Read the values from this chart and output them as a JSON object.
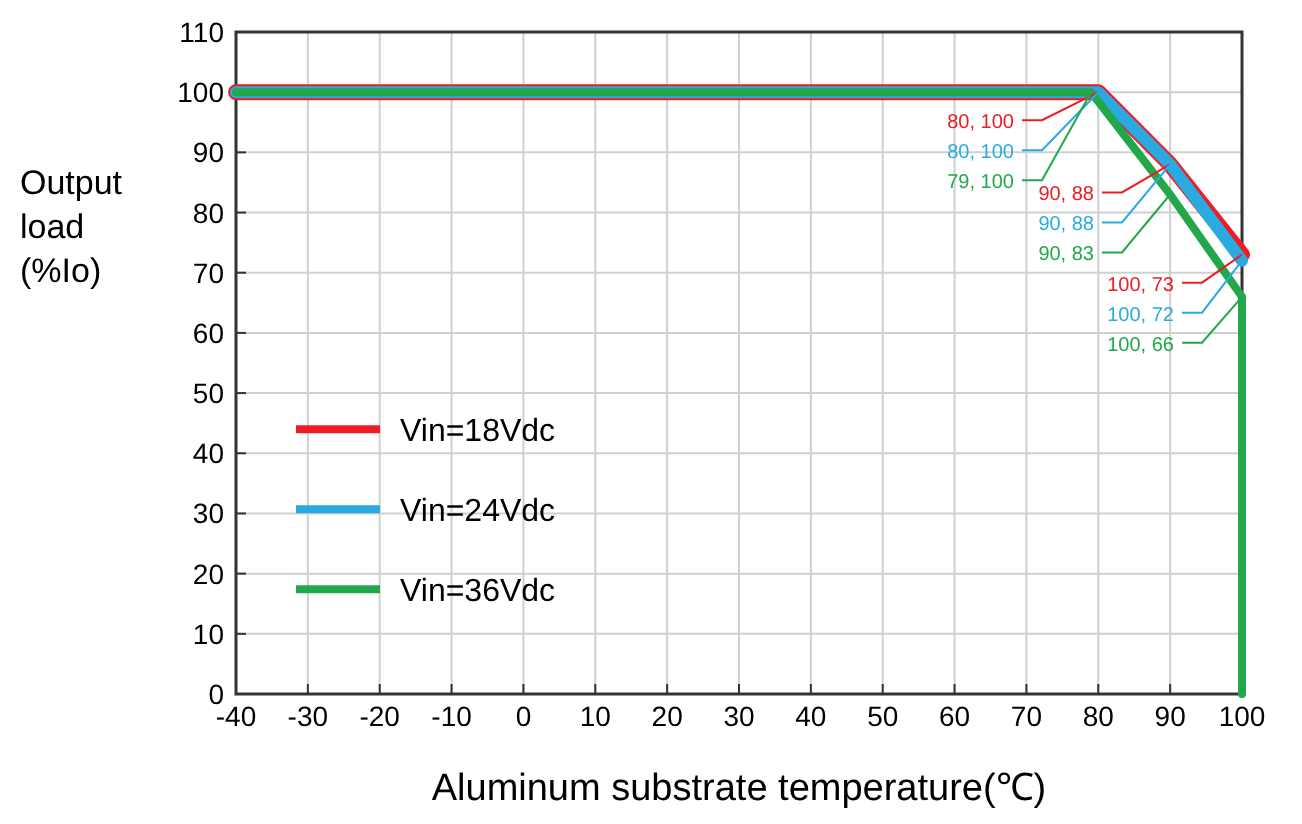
{
  "chart_data": {
    "type": "line",
    "xlabel": "Aluminum substrate temperature(℃)",
    "ylabel": "Output load (%Io)",
    "xlim": [
      -40,
      100
    ],
    "xticks": [
      -40,
      -30,
      -20,
      -10,
      0,
      10,
      20,
      30,
      40,
      50,
      60,
      70,
      80,
      90,
      100
    ],
    "ylim": [
      0,
      110
    ],
    "yticks": [
      0,
      10,
      20,
      30,
      40,
      50,
      60,
      70,
      80,
      90,
      100,
      110
    ],
    "grid": true,
    "legend": "left",
    "marker": "none",
    "line_style": "solid",
    "series": [
      {
        "name": "Vin=18Vdc",
        "color": "#ee1c25",
        "x": [
          -40,
          80,
          90,
          100
        ],
        "values": [
          100,
          100,
          88,
          73
        ]
      },
      {
        "name": "Vin=24Vdc",
        "color": "#29abe2",
        "x": [
          -40,
          80,
          90,
          100
        ],
        "values": [
          100,
          100,
          88,
          72
        ]
      },
      {
        "name": "Vin=36Vdc",
        "color": "#22a84a",
        "x": [
          -40,
          79,
          90,
          100,
          100
        ],
        "values": [
          100,
          100,
          83,
          66,
          0
        ]
      }
    ],
    "annotations": [
      {
        "text": "80, 100",
        "x": 80,
        "y": 100
      },
      {
        "text": "90, 88",
        "x": 90,
        "y": 88
      },
      {
        "text": "100, 73",
        "x": 100,
        "y": 73
      },
      {
        "text": "80, 100",
        "x": 80,
        "y": 100
      },
      {
        "text": "90, 88",
        "x": 90,
        "y": 88
      },
      {
        "text": "100, 72",
        "x": 100,
        "y": 72
      },
      {
        "text": "79, 100",
        "x": 79,
        "y": 100
      },
      {
        "text": "90, 83",
        "x": 90,
        "y": 83
      },
      {
        "text": "100, 66",
        "x": 100,
        "y": 66
      }
    ]
  }
}
